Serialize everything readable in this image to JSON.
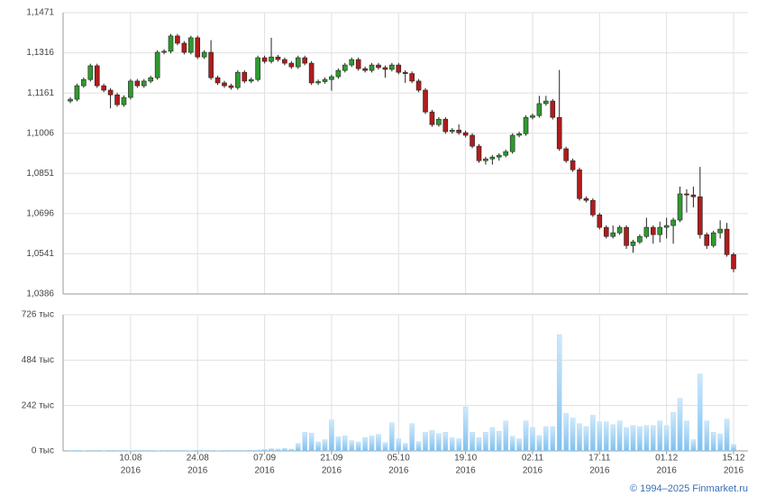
{
  "chart_data": {
    "type": "candlestick",
    "categories": [
      null,
      null,
      null,
      null,
      null,
      null,
      null,
      null,
      null,
      [
        "10.08",
        "2016"
      ],
      null,
      null,
      null,
      null,
      null,
      null,
      null,
      null,
      null,
      [
        "24.08",
        "2016"
      ],
      null,
      null,
      null,
      null,
      null,
      null,
      null,
      null,
      null,
      [
        "07.09",
        "2016"
      ],
      null,
      null,
      null,
      null,
      null,
      null,
      null,
      null,
      null,
      [
        "21.09",
        "2016"
      ],
      null,
      null,
      null,
      null,
      null,
      null,
      null,
      null,
      null,
      [
        "05.10",
        "2016"
      ],
      null,
      null,
      null,
      null,
      null,
      null,
      null,
      null,
      null,
      [
        "19.10",
        "2016"
      ],
      null,
      null,
      null,
      null,
      null,
      null,
      null,
      null,
      null,
      [
        "02.11",
        "2016"
      ],
      null,
      null,
      null,
      null,
      null,
      null,
      null,
      null,
      null,
      [
        "17.11",
        "2016"
      ],
      null,
      null,
      null,
      null,
      null,
      null,
      null,
      null,
      null,
      [
        "01.12",
        "2016"
      ],
      null,
      null,
      null,
      null,
      null,
      null,
      null,
      null,
      null,
      [
        "15.12",
        "2016"
      ]
    ],
    "open": [
      1.113,
      1.1137,
      1.1189,
      1.1213,
      1.1266,
      1.1189,
      1.1172,
      1.1154,
      1.1116,
      1.1144,
      1.1207,
      1.1189,
      1.1207,
      1.122,
      1.1318,
      1.1322,
      1.1381,
      1.1353,
      1.1318,
      1.1374,
      1.13,
      1.1318,
      1.122,
      1.12,
      1.1189,
      1.1182,
      1.1241,
      1.1207,
      1.1213,
      1.1297,
      1.1283,
      1.13,
      1.129,
      1.1276,
      1.1262,
      1.1297,
      1.1276,
      1.12,
      1.1205,
      1.1213,
      1.1224,
      1.1248,
      1.1269,
      1.129,
      1.1255,
      1.1248,
      1.1269,
      1.1259,
      1.1252,
      1.1269,
      1.1241,
      1.1236,
      1.1207,
      1.1172,
      1.1088,
      1.1039,
      1.106,
      1.1012,
      1.1018,
      1.1008,
      1.0998,
      1.0956,
      1.09,
      1.0907,
      1.0914,
      1.0921,
      1.0935,
      1.0998,
      1.1004,
      1.1067,
      1.1074,
      1.112,
      1.113,
      1.1067,
      1.0946,
      1.09,
      1.0865,
      1.0754,
      1.0747,
      1.0691,
      1.0643,
      1.0608,
      1.0622,
      1.0643,
      1.0573,
      1.0587,
      1.0608,
      1.0643,
      1.0615,
      1.0643,
      1.065,
      1.0671,
      1.0772,
      1.0768,
      1.0761,
      1.0615,
      1.0573,
      1.0622,
      1.0636,
      1.0538
    ],
    "high": [
      1.1145,
      1.1197,
      1.1221,
      1.1274,
      1.1274,
      1.1197,
      1.118,
      1.1162,
      1.1152,
      1.1215,
      1.1215,
      1.1215,
      1.1228,
      1.1326,
      1.133,
      1.1389,
      1.1389,
      1.1361,
      1.1382,
      1.1382,
      1.1326,
      1.1365,
      1.1228,
      1.1208,
      1.1197,
      1.1249,
      1.1249,
      1.1221,
      1.1305,
      1.1305,
      1.1374,
      1.1308,
      1.1298,
      1.1284,
      1.1305,
      1.1305,
      1.1284,
      1.1213,
      1.1221,
      1.1232,
      1.1256,
      1.1277,
      1.1298,
      1.1298,
      1.1263,
      1.1277,
      1.1277,
      1.1267,
      1.1277,
      1.1277,
      1.1249,
      1.1244,
      1.1215,
      1.118,
      1.1096,
      1.1068,
      1.1068,
      1.1026,
      1.104,
      1.1016,
      1.1006,
      1.0964,
      1.0915,
      1.0922,
      1.0929,
      1.0943,
      1.1006,
      1.1012,
      1.1075,
      1.1082,
      1.115,
      1.115,
      1.1138,
      1.125,
      1.0954,
      1.0908,
      1.0873,
      1.0762,
      1.0755,
      1.0699,
      1.0651,
      1.065,
      1.0651,
      1.0651,
      1.0595,
      1.0616,
      1.068,
      1.0651,
      1.0665,
      1.068,
      1.068,
      1.08,
      1.079,
      1.08,
      1.0876,
      1.0623,
      1.063,
      1.067,
      1.066,
      1.0546
    ],
    "low": [
      1.1122,
      1.1129,
      1.1181,
      1.1205,
      1.1181,
      1.1164,
      1.1102,
      1.1108,
      1.1108,
      1.1136,
      1.1181,
      1.1181,
      1.1199,
      1.1212,
      1.131,
      1.1314,
      1.1345,
      1.131,
      1.131,
      1.1292,
      1.1292,
      1.1212,
      1.1192,
      1.1181,
      1.1174,
      1.1174,
      1.1199,
      1.1199,
      1.1205,
      1.1275,
      1.1275,
      1.1282,
      1.1268,
      1.1254,
      1.1254,
      1.1268,
      1.1192,
      1.1192,
      1.1197,
      1.117,
      1.1216,
      1.124,
      1.1261,
      1.1247,
      1.124,
      1.124,
      1.1251,
      1.122,
      1.1244,
      1.1233,
      1.12,
      1.1199,
      1.1164,
      1.108,
      1.1031,
      1.1031,
      1.1004,
      1.1004,
      1.1,
      1.099,
      1.0948,
      1.0892,
      1.0885,
      1.0885,
      1.09,
      1.0913,
      1.0927,
      1.099,
      1.0996,
      1.1059,
      1.1066,
      1.1112,
      1.1059,
      1.0938,
      1.0892,
      1.0857,
      1.0746,
      1.0739,
      1.0683,
      1.0635,
      1.06,
      1.06,
      1.0614,
      1.056,
      1.0545,
      1.0579,
      1.06,
      1.058,
      1.0585,
      1.06,
      1.058,
      1.0663,
      1.07,
      1.072,
      1.06,
      1.056,
      1.0565,
      1.06,
      1.053,
      1.047
    ],
    "close": [
      1.1137,
      1.1189,
      1.1213,
      1.1266,
      1.1189,
      1.1172,
      1.1154,
      1.1116,
      1.1144,
      1.1207,
      1.1189,
      1.1207,
      1.122,
      1.1318,
      1.1322,
      1.1381,
      1.1353,
      1.1318,
      1.1374,
      1.13,
      1.1318,
      1.122,
      1.12,
      1.1189,
      1.1182,
      1.1241,
      1.1207,
      1.1213,
      1.1297,
      1.1283,
      1.13,
      1.129,
      1.1276,
      1.1262,
      1.1297,
      1.1276,
      1.12,
      1.1205,
      1.1213,
      1.1224,
      1.1248,
      1.1269,
      1.129,
      1.1255,
      1.1248,
      1.1269,
      1.1259,
      1.1252,
      1.1269,
      1.1241,
      1.1236,
      1.1207,
      1.1172,
      1.1088,
      1.1039,
      1.106,
      1.1012,
      1.1018,
      1.1008,
      1.0998,
      1.0956,
      1.09,
      1.0907,
      1.0914,
      1.0921,
      1.0935,
      1.0998,
      1.1004,
      1.1067,
      1.1074,
      1.112,
      1.113,
      1.1067,
      1.0946,
      1.09,
      1.0865,
      1.0754,
      1.0747,
      1.0691,
      1.0643,
      1.0608,
      1.0622,
      1.0643,
      1.0573,
      1.0587,
      1.0608,
      1.0643,
      1.0615,
      1.0643,
      1.065,
      1.0671,
      1.0772,
      1.0768,
      1.0761,
      1.0615,
      1.0573,
      1.0622,
      1.0636,
      1.0538,
      1.0483
    ],
    "ylim": [
      1.0386,
      1.1471
    ],
    "yticks": [
      {
        "value": 1.0386,
        "label": "1,0386"
      },
      {
        "value": 1.0541,
        "label": "1,0541"
      },
      {
        "value": 1.0696,
        "label": "1,0696"
      },
      {
        "value": 1.0851,
        "label": "1,0851"
      },
      {
        "value": 1.1006,
        "label": "1,1006"
      },
      {
        "value": 1.1161,
        "label": "1,1161"
      },
      {
        "value": 1.1316,
        "label": "1,1316"
      },
      {
        "value": 1.1471,
        "label": "1,1471"
      }
    ],
    "up_color": "#2f9a2f",
    "down_color": "#b01c1c",
    "grid": true,
    "volume": {
      "values": [
        3,
        3,
        2,
        3,
        3,
        2,
        3,
        3,
        3,
        2,
        3,
        3,
        3,
        2,
        3,
        3,
        3,
        3,
        2,
        3,
        3,
        3,
        2,
        3,
        3,
        3,
        3,
        4,
        5,
        8,
        12,
        10,
        14,
        10,
        40,
        100,
        95,
        48,
        60,
        165,
        75,
        80,
        55,
        48,
        72,
        80,
        88,
        45,
        150,
        65,
        40,
        145,
        50,
        100,
        110,
        92,
        100,
        70,
        65,
        235,
        100,
        70,
        100,
        125,
        105,
        160,
        78,
        65,
        160,
        125,
        82,
        130,
        130,
        620,
        200,
        175,
        145,
        130,
        190,
        155,
        155,
        140,
        160,
        125,
        135,
        130,
        135,
        135,
        160,
        135,
        205,
        280,
        160,
        60,
        410,
        160,
        100,
        90,
        170,
        35
      ],
      "ylim": [
        0,
        726
      ],
      "yticks": [
        {
          "value": 0,
          "label": "0 тыс"
        },
        {
          "value": 242,
          "label": "242 тыс"
        },
        {
          "value": 484,
          "label": "484 тыс"
        },
        {
          "value": 726,
          "label": "726 тыс"
        }
      ],
      "color": "#9dd0f3"
    },
    "source": "© 1994–2025 Finmarket.ru"
  }
}
